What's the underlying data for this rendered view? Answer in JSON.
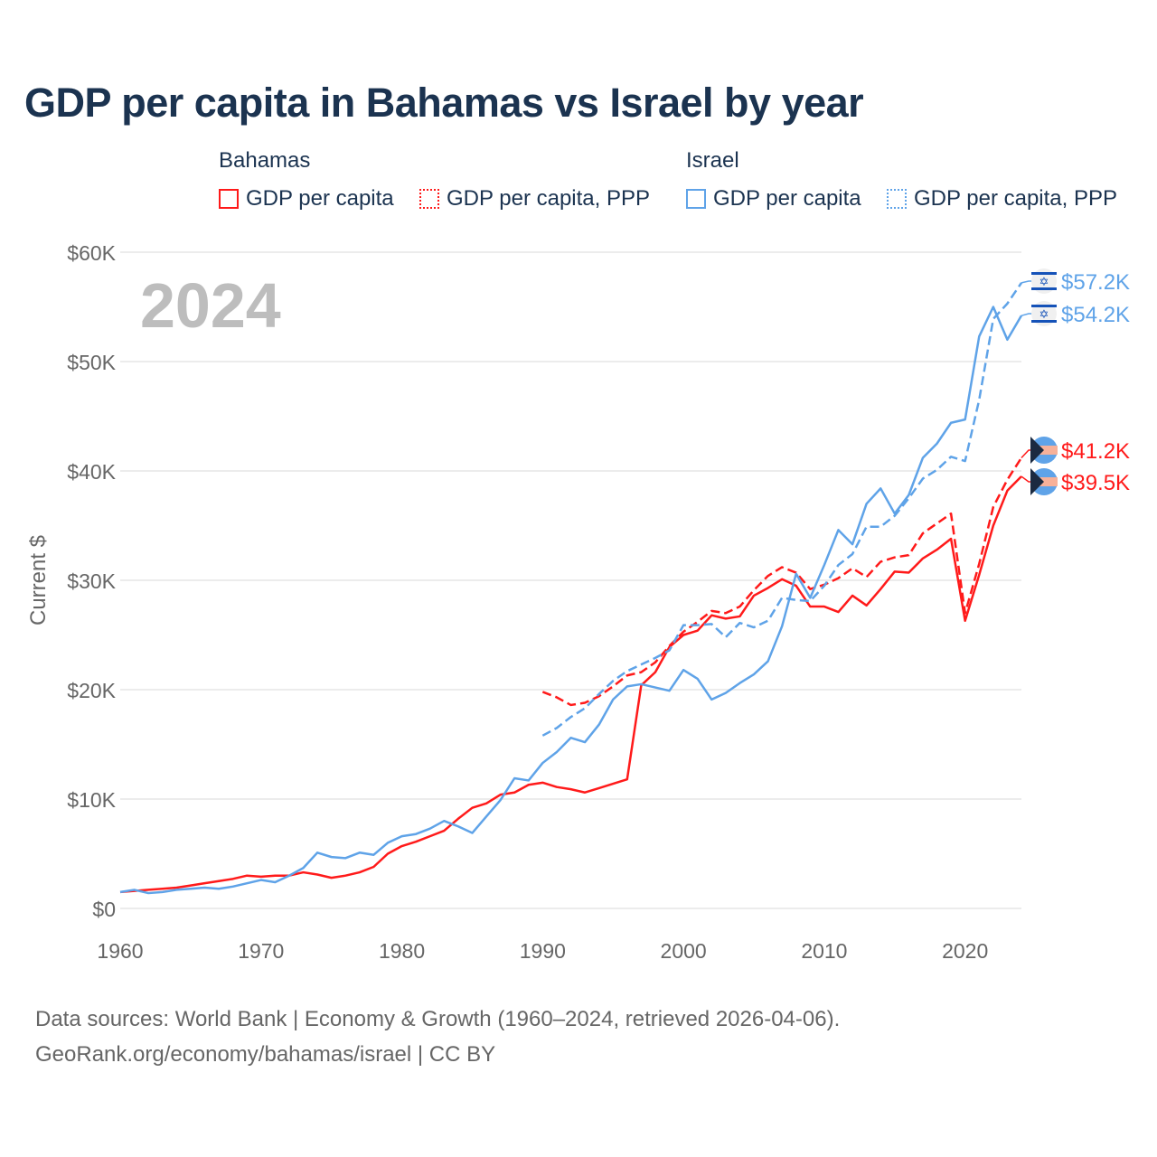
{
  "title": "GDP per capita in Bahamas vs Israel by year",
  "legend": {
    "groups": [
      {
        "name": "Bahamas",
        "items": [
          "GDP per capita",
          "GDP per capita, PPP"
        ]
      },
      {
        "name": "Israel",
        "items": [
          "GDP per capita",
          "GDP per capita, PPP"
        ]
      }
    ]
  },
  "colors": {
    "bahamas": "#ff1a1a",
    "israel": "#5fa3e8"
  },
  "footer": {
    "line1": "Data sources: World Bank | Economy & Growth (1960–2024, retrieved 2026-04-06).",
    "line2": "GeoRank.org/economy/bahamas/israel | CC BY"
  },
  "chart_data": {
    "type": "line",
    "title": "GDP per capita in Bahamas vs Israel by year",
    "year_watermark": "2024",
    "ylabel": "Current $",
    "xlabel": "",
    "xlim": [
      1960,
      2024
    ],
    "ylim": [
      0,
      60000
    ],
    "xticks": [
      1960,
      1970,
      1980,
      1990,
      2000,
      2010,
      2020
    ],
    "yticks": [
      {
        "v": 0,
        "label": "$0"
      },
      {
        "v": 10000,
        "label": "$10K"
      },
      {
        "v": 20000,
        "label": "$20K"
      },
      {
        "v": 30000,
        "label": "$30K"
      },
      {
        "v": 40000,
        "label": "$40K"
      },
      {
        "v": 50000,
        "label": "$50K"
      },
      {
        "v": 60000,
        "label": "$60K"
      }
    ],
    "grid": true,
    "series": [
      {
        "name": "Bahamas GDP per capita",
        "country": "bahamas",
        "dash": false,
        "start": 1960,
        "end_label": "$39.5K",
        "values": [
          1.5,
          1.6,
          1.7,
          1.8,
          1.9,
          2.1,
          2.3,
          2.5,
          2.7,
          3.0,
          2.9,
          3.0,
          3.0,
          3.3,
          3.1,
          2.8,
          3.0,
          3.3,
          3.8,
          5.0,
          5.7,
          6.1,
          6.6,
          7.1,
          8.2,
          9.2,
          9.6,
          10.4,
          10.6,
          11.3,
          11.5,
          11.1,
          10.9,
          10.6,
          11.0,
          11.4,
          11.8,
          20.4,
          21.6,
          23.9,
          25.0,
          25.4,
          26.8,
          26.5,
          26.7,
          28.6,
          29.3,
          30.1,
          29.5,
          27.6,
          27.6,
          27.1,
          28.6,
          27.7,
          29.2,
          30.8,
          30.7,
          32.0,
          32.8,
          33.8,
          26.3,
          30.5,
          35.0,
          38.2,
          39.5
        ]
      },
      {
        "name": "Bahamas GDP per capita, PPP",
        "country": "bahamas",
        "dash": true,
        "start": 1990,
        "end_label": "$41.2K",
        "values": [
          19.8,
          19.3,
          18.6,
          18.8,
          19.4,
          20.3,
          21.3,
          21.6,
          22.5,
          24.0,
          25.3,
          26.2,
          27.2,
          27.0,
          27.6,
          29.1,
          30.4,
          31.2,
          30.7,
          29.2,
          29.6,
          30.2,
          31.1,
          30.3,
          31.7,
          32.1,
          32.3,
          34.3,
          35.2,
          36.1,
          27.0,
          31.5,
          36.7,
          39.2,
          41.2
        ]
      },
      {
        "name": "Israel GDP per capita",
        "country": "israel",
        "dash": false,
        "start": 1960,
        "end_label": "$54.2K",
        "values": [
          1.5,
          1.7,
          1.4,
          1.5,
          1.7,
          1.8,
          1.9,
          1.8,
          2.0,
          2.3,
          2.6,
          2.4,
          3.0,
          3.7,
          5.1,
          4.7,
          4.6,
          5.1,
          4.9,
          6.0,
          6.6,
          6.8,
          7.3,
          8.0,
          7.5,
          6.9,
          8.4,
          9.9,
          11.9,
          11.7,
          13.3,
          14.3,
          15.6,
          15.2,
          16.8,
          19.1,
          20.3,
          20.5,
          20.2,
          19.9,
          21.8,
          21.0,
          19.1,
          19.7,
          20.6,
          21.4,
          22.6,
          25.8,
          30.6,
          28.4,
          31.4,
          34.6,
          33.3,
          37.0,
          38.4,
          36.1,
          37.8,
          41.2,
          42.5,
          44.4,
          44.7,
          52.3,
          55.0,
          52.0,
          54.2
        ]
      },
      {
        "name": "Israel GDP per capita, PPP",
        "country": "israel",
        "dash": true,
        "start": 1990,
        "end_label": "$57.2K",
        "values": [
          15.8,
          16.5,
          17.5,
          18.3,
          19.6,
          20.8,
          21.7,
          22.3,
          22.9,
          23.6,
          25.9,
          25.9,
          26.0,
          24.8,
          26.1,
          25.7,
          26.3,
          28.4,
          28.2,
          28.1,
          29.5,
          31.4,
          32.4,
          34.9,
          34.9,
          35.9,
          37.5,
          39.3,
          40.1,
          41.3,
          40.9,
          46.5,
          53.9,
          55.3,
          57.2
        ]
      }
    ],
    "values_unit": "thousand current US$"
  }
}
